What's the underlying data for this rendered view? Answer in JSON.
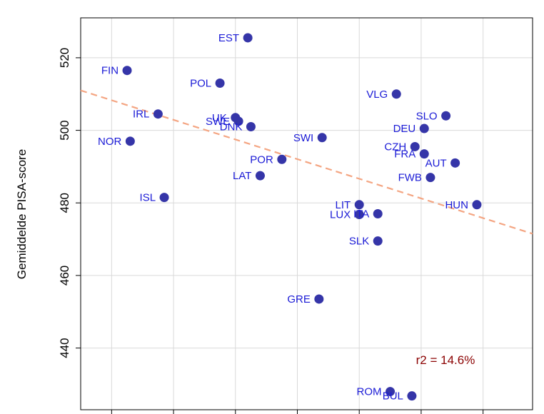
{
  "chart_data": {
    "type": "scatter",
    "title": "",
    "xlabel": "",
    "ylabel": "Gemiddelde PISA-score",
    "ylim": [
      423,
      531
    ],
    "xlim": [
      2.5,
      9.8
    ],
    "grid": true,
    "y_ticks": [
      440,
      460,
      480,
      500,
      520
    ],
    "x_ticks": [
      3,
      4,
      5,
      6,
      7,
      8,
      9
    ],
    "points": [
      {
        "label": "EST",
        "x": 5.2,
        "y": 525.5
      },
      {
        "label": "FIN",
        "x": 3.25,
        "y": 516.5
      },
      {
        "label": "POL",
        "x": 4.75,
        "y": 513
      },
      {
        "label": "VLG",
        "x": 7.6,
        "y": 510
      },
      {
        "label": "IRL",
        "x": 3.75,
        "y": 504.5
      },
      {
        "label": "UK",
        "x": 5.0,
        "y": 503.5
      },
      {
        "label": "SWE",
        "x": 5.05,
        "y": 502.5
      },
      {
        "label": "DNK",
        "x": 5.25,
        "y": 501
      },
      {
        "label": "SLO",
        "x": 8.4,
        "y": 504
      },
      {
        "label": "DEU",
        "x": 8.05,
        "y": 500.5
      },
      {
        "label": "NOR",
        "x": 3.3,
        "y": 497
      },
      {
        "label": "SWI",
        "x": 6.4,
        "y": 498
      },
      {
        "label": "CZH",
        "x": 7.9,
        "y": 495.5
      },
      {
        "label": "FRA",
        "x": 8.05,
        "y": 493.5
      },
      {
        "label": "AUT",
        "x": 8.55,
        "y": 491
      },
      {
        "label": "POR",
        "x": 5.75,
        "y": 492
      },
      {
        "label": "LAT",
        "x": 5.4,
        "y": 487.5
      },
      {
        "label": "FWB",
        "x": 8.15,
        "y": 487
      },
      {
        "label": "ISL",
        "x": 3.85,
        "y": 481.5
      },
      {
        "label": "LIT",
        "x": 7.0,
        "y": 479.5
      },
      {
        "label": "HUN",
        "x": 8.9,
        "y": 479.5
      },
      {
        "label": "LUX",
        "x": 7.0,
        "y": 476.8
      },
      {
        "label": "ITA",
        "x": 7.3,
        "y": 477
      },
      {
        "label": "SLK",
        "x": 7.3,
        "y": 469.5
      },
      {
        "label": "GRE",
        "x": 6.35,
        "y": 453.5
      },
      {
        "label": "ROM",
        "x": 7.5,
        "y": 428
      },
      {
        "label": "BUL",
        "x": 7.85,
        "y": 426.8
      }
    ],
    "trendline": {
      "style": "dashed",
      "color": "#f4a582",
      "y_at_xmin": 511,
      "y_at_xmax": 471.5
    },
    "annotation": "r2 = 14.6%",
    "colors": {
      "points": "#3535a8",
      "labels": "#1a1ad6",
      "annotation": "#8b0000",
      "grid": "#d9d9d9"
    }
  }
}
